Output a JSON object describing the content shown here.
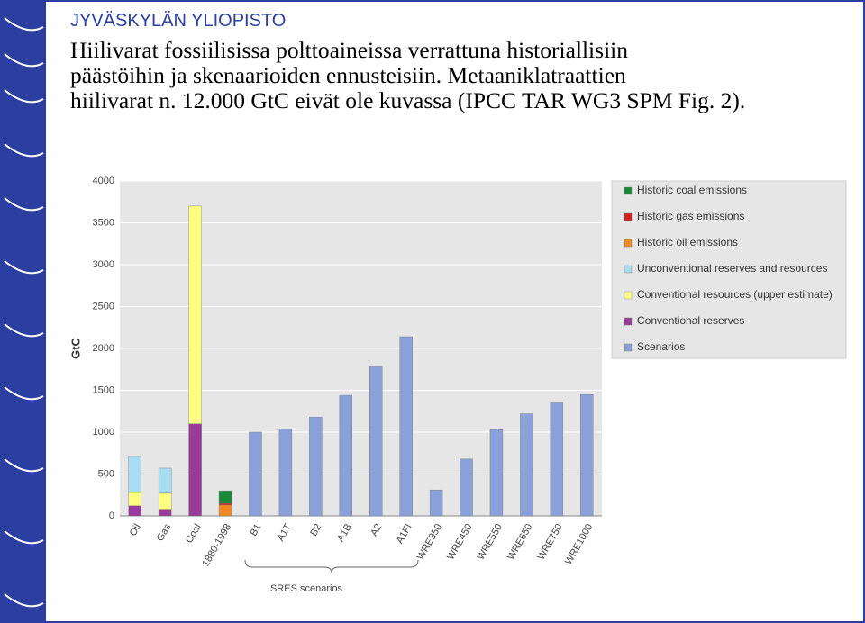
{
  "header": {
    "org": "JYVÄSKYLÄN YLIOPISTO",
    "title_lines": [
      "Hiilivarat fossiilisissa polttoaineissa verrattuna historiallisiin",
      "päästöihin ja skenaarioiden ennusteisiin. Metaaniklatraattien",
      "hiilivarat n. 12.000 GtC eivät ole kuvassa (IPCC TAR WG3 SPM Fig. 2)."
    ]
  },
  "chart_data": {
    "type": "bar",
    "stacked": true,
    "y_label": "GtC",
    "annotation": "SRES scenarios",
    "categories": [
      "Oil",
      "Gas",
      "Coal",
      "1880-1998",
      "B1",
      "A1T",
      "B2",
      "A1B",
      "A2",
      "A1FI",
      "WRE350",
      "WRE450",
      "WRE550",
      "WRE650",
      "WRE750",
      "WRE1000"
    ],
    "series": [
      {
        "name": "Historic coal emissions",
        "color": "#1a8a3a",
        "values": [
          null,
          null,
          null,
          150,
          null,
          null,
          null,
          null,
          null,
          null,
          null,
          null,
          null,
          null,
          null,
          null
        ]
      },
      {
        "name": "Historic gas emissions",
        "color": "#d42020",
        "values": [
          null,
          null,
          null,
          20,
          null,
          null,
          null,
          null,
          null,
          null,
          null,
          null,
          null,
          null,
          null,
          null
        ]
      },
      {
        "name": "Historic oil emissions",
        "color": "#f08a20",
        "values": [
          null,
          null,
          null,
          130,
          null,
          null,
          null,
          null,
          null,
          null,
          null,
          null,
          null,
          null,
          null,
          null
        ]
      },
      {
        "name": "Unconventional reserves and resources",
        "color": "#a8dcf0",
        "values": [
          430,
          300,
          null,
          null,
          null,
          null,
          null,
          null,
          null,
          null,
          null,
          null,
          null,
          null,
          null,
          null
        ]
      },
      {
        "name": "Conventional resources (upper estimate)",
        "color": "#ffff80",
        "values": [
          160,
          190,
          2600,
          null,
          null,
          null,
          null,
          null,
          null,
          null,
          null,
          null,
          null,
          null,
          null,
          null
        ]
      },
      {
        "name": "Conventional reserves",
        "color": "#9a3a9a",
        "values": [
          120,
          80,
          1100,
          null,
          null,
          null,
          null,
          null,
          null,
          null,
          null,
          null,
          null,
          null,
          null,
          null
        ]
      },
      {
        "name": "Scenarios",
        "color": "#8aa0d8",
        "values": [
          null,
          null,
          null,
          null,
          1000,
          1040,
          1180,
          1440,
          1780,
          2140,
          310,
          680,
          1030,
          1220,
          1350,
          1450
        ]
      }
    ],
    "ylim": [
      0,
      4000
    ],
    "yticks": [
      0,
      500,
      1000,
      1500,
      2000,
      2500,
      3000,
      3500,
      4000
    ],
    "grid": true,
    "legend": "right"
  }
}
